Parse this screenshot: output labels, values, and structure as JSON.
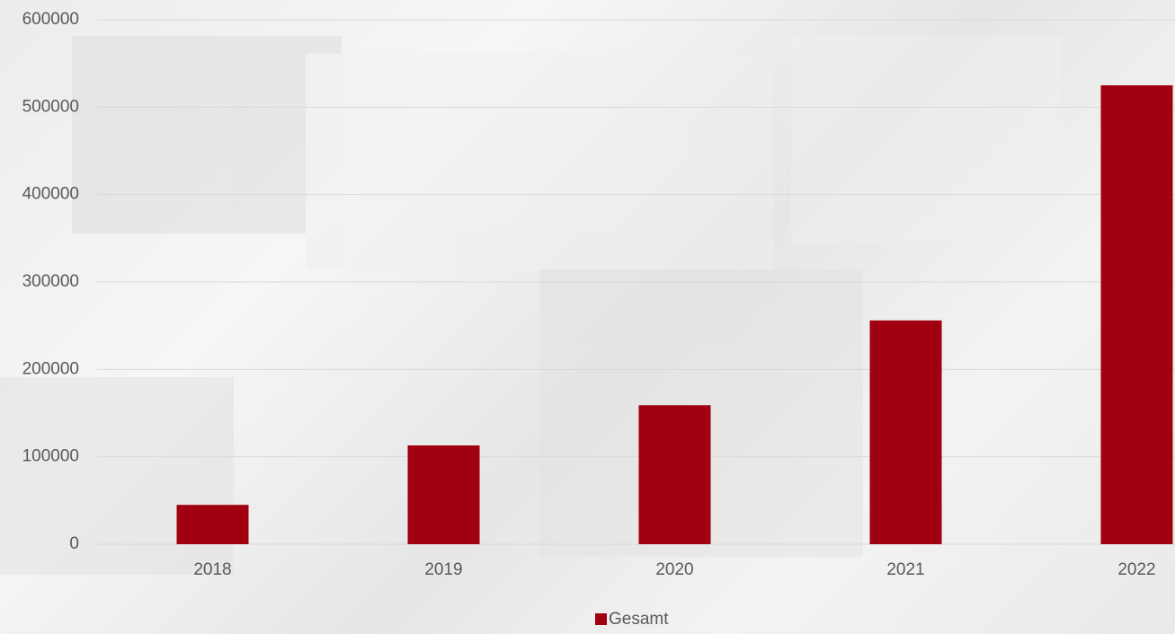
{
  "chart_data": {
    "type": "bar",
    "categories": [
      "2018",
      "2019",
      "2020",
      "2021",
      "2022"
    ],
    "series": [
      {
        "name": "Gesamt",
        "color": "#a0000f",
        "values": [
          45000,
          113000,
          159000,
          256000,
          525000
        ]
      }
    ],
    "ylim": [
      0,
      600000
    ],
    "yticks": [
      0,
      100000,
      200000,
      300000,
      400000,
      500000,
      600000
    ],
    "grid": true,
    "legend": "bottom"
  }
}
